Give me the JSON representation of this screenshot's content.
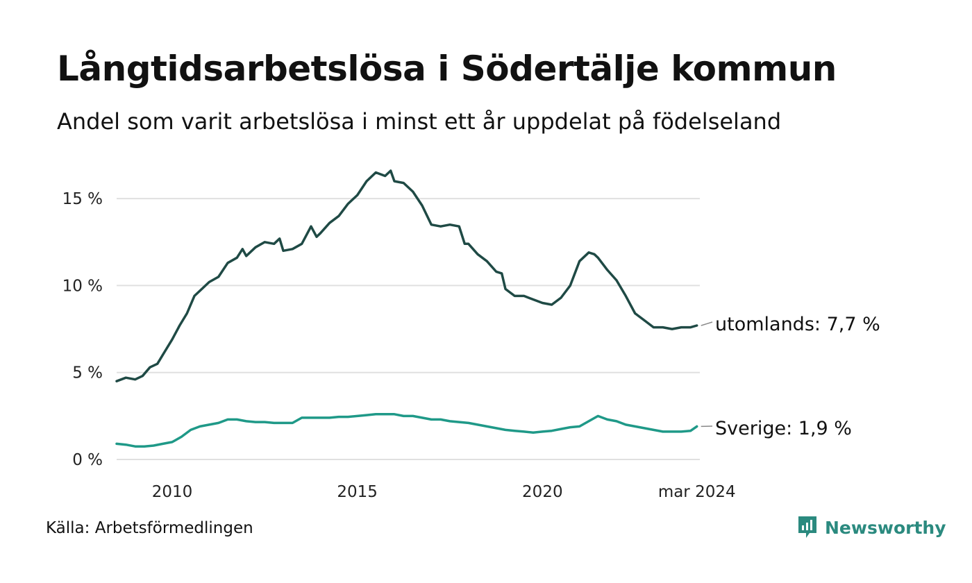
{
  "header": {
    "title": "Långtidsarbetslösa i Södertälje kommun",
    "subtitle": "Andel som varit arbetslösa i minst ett år uppdelat på födelseland"
  },
  "footer": {
    "source": "Källa: Arbetsförmedlingen",
    "brand": "Newsworthy"
  },
  "colors": {
    "utomlands": "#1f4a45",
    "sverige": "#1f9988",
    "grid": "#e0e0e0",
    "brand": "#2b8a7f"
  },
  "chart_data": {
    "type": "line",
    "title": "Långtidsarbetslösa i Södertälje kommun",
    "subtitle": "Andel som varit arbetslösa i minst ett år uppdelat på födelseland",
    "xlabel": "",
    "ylabel": "",
    "x_range": [
      2008.5,
      2024.25
    ],
    "ylim": [
      0,
      17
    ],
    "yticks": [
      0,
      5,
      10,
      15
    ],
    "ytick_labels": [
      "0 %",
      "5 %",
      "10 %",
      "15 %"
    ],
    "xticks": [
      2010,
      2015,
      2020,
      2024.17
    ],
    "xtick_labels": [
      "2010",
      "2015",
      "2020",
      "mar 2024"
    ],
    "grid": true,
    "series": [
      {
        "name": "utomlands",
        "end_label": "utomlands: 7,7 %",
        "x": [
          2008.5,
          2008.75,
          2009.0,
          2009.2,
          2009.4,
          2009.6,
          2009.8,
          2010.0,
          2010.2,
          2010.4,
          2010.6,
          2010.8,
          2011.0,
          2011.25,
          2011.5,
          2011.75,
          2011.9,
          2012.0,
          2012.25,
          2012.5,
          2012.75,
          2012.9,
          2013.0,
          2013.25,
          2013.5,
          2013.75,
          2013.9,
          2014.0,
          2014.25,
          2014.5,
          2014.75,
          2015.0,
          2015.25,
          2015.5,
          2015.75,
          2015.9,
          2016.0,
          2016.25,
          2016.5,
          2016.75,
          2017.0,
          2017.25,
          2017.5,
          2017.75,
          2017.9,
          2018.0,
          2018.25,
          2018.5,
          2018.75,
          2018.9,
          2019.0,
          2019.25,
          2019.5,
          2019.75,
          2020.0,
          2020.25,
          2020.5,
          2020.75,
          2021.0,
          2021.25,
          2021.4,
          2021.5,
          2021.75,
          2022.0,
          2022.25,
          2022.5,
          2022.75,
          2023.0,
          2023.25,
          2023.5,
          2023.75,
          2024.0,
          2024.17
        ],
        "values": [
          4.5,
          4.7,
          4.6,
          4.8,
          5.3,
          5.5,
          6.2,
          6.9,
          7.7,
          8.4,
          9.4,
          9.8,
          10.2,
          10.5,
          11.3,
          11.6,
          12.1,
          11.7,
          12.2,
          12.5,
          12.4,
          12.7,
          12.0,
          12.1,
          12.4,
          13.4,
          12.8,
          13.0,
          13.6,
          14.0,
          14.7,
          15.2,
          16.0,
          16.5,
          16.3,
          16.6,
          16.0,
          15.9,
          15.4,
          14.6,
          13.5,
          13.4,
          13.5,
          13.4,
          12.4,
          12.4,
          11.8,
          11.4,
          10.8,
          10.7,
          9.8,
          9.4,
          9.4,
          9.2,
          9.0,
          8.9,
          9.3,
          10.0,
          11.4,
          11.9,
          11.8,
          11.6,
          10.9,
          10.3,
          9.4,
          8.4,
          8.0,
          7.6,
          7.6,
          7.5,
          7.6,
          7.6,
          7.7
        ]
      },
      {
        "name": "Sverige",
        "end_label": "Sverige: 1,9 %",
        "x": [
          2008.5,
          2008.75,
          2009.0,
          2009.25,
          2009.5,
          2009.75,
          2010.0,
          2010.25,
          2010.5,
          2010.75,
          2011.0,
          2011.25,
          2011.5,
          2011.75,
          2012.0,
          2012.25,
          2012.5,
          2012.75,
          2013.0,
          2013.25,
          2013.5,
          2013.75,
          2014.0,
          2014.25,
          2014.5,
          2014.75,
          2015.0,
          2015.25,
          2015.5,
          2015.75,
          2016.0,
          2016.25,
          2016.5,
          2016.75,
          2017.0,
          2017.25,
          2017.5,
          2017.75,
          2018.0,
          2018.25,
          2018.5,
          2018.75,
          2019.0,
          2019.25,
          2019.5,
          2019.75,
          2020.0,
          2020.25,
          2020.5,
          2020.75,
          2021.0,
          2021.25,
          2021.5,
          2021.75,
          2022.0,
          2022.25,
          2022.5,
          2022.75,
          2023.0,
          2023.25,
          2023.5,
          2023.75,
          2024.0,
          2024.17
        ],
        "values": [
          0.9,
          0.85,
          0.75,
          0.75,
          0.8,
          0.9,
          1.0,
          1.3,
          1.7,
          1.9,
          2.0,
          2.1,
          2.3,
          2.3,
          2.2,
          2.15,
          2.15,
          2.1,
          2.1,
          2.1,
          2.4,
          2.4,
          2.4,
          2.4,
          2.45,
          2.45,
          2.5,
          2.55,
          2.6,
          2.6,
          2.6,
          2.5,
          2.5,
          2.4,
          2.3,
          2.3,
          2.2,
          2.15,
          2.1,
          2.0,
          1.9,
          1.8,
          1.7,
          1.65,
          1.6,
          1.55,
          1.6,
          1.65,
          1.75,
          1.85,
          1.9,
          2.2,
          2.5,
          2.3,
          2.2,
          2.0,
          1.9,
          1.8,
          1.7,
          1.6,
          1.6,
          1.6,
          1.65,
          1.9
        ]
      }
    ]
  }
}
